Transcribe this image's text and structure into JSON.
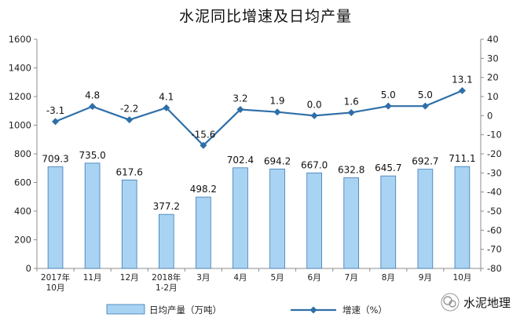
{
  "chart_data": {
    "type": "bar+line",
    "title": "水泥同比增速及日均产量",
    "categories": [
      [
        "2017年",
        "10月"
      ],
      [
        "11月"
      ],
      [
        "12月"
      ],
      [
        "2018年",
        "1-2月"
      ],
      [
        "3月"
      ],
      [
        "4月"
      ],
      [
        "5月"
      ],
      [
        "6月"
      ],
      [
        "7月"
      ],
      [
        "8月"
      ],
      [
        "9月"
      ],
      [
        "10月"
      ]
    ],
    "series": [
      {
        "name": "日均产量（万吨）",
        "type": "bar",
        "axis": "left",
        "color": "#a9d3f2",
        "values": [
          709.3,
          735.0,
          617.6,
          377.2,
          498.2,
          702.4,
          694.2,
          667.0,
          632.8,
          645.7,
          692.7,
          711.1
        ]
      },
      {
        "name": "增速（%）",
        "type": "line",
        "axis": "right",
        "color": "#2f6fa8",
        "values": [
          -3.1,
          4.8,
          -2.2,
          4.1,
          -15.6,
          3.2,
          1.9,
          0.0,
          1.6,
          5.0,
          5.0,
          13.1
        ]
      }
    ],
    "y_left": {
      "min": 0,
      "max": 1600,
      "step": 200
    },
    "y_right": {
      "min": -80,
      "max": 40,
      "step": 10
    },
    "grid": false,
    "legend_position": "bottom"
  },
  "watermark": {
    "text": "水泥地理"
  }
}
